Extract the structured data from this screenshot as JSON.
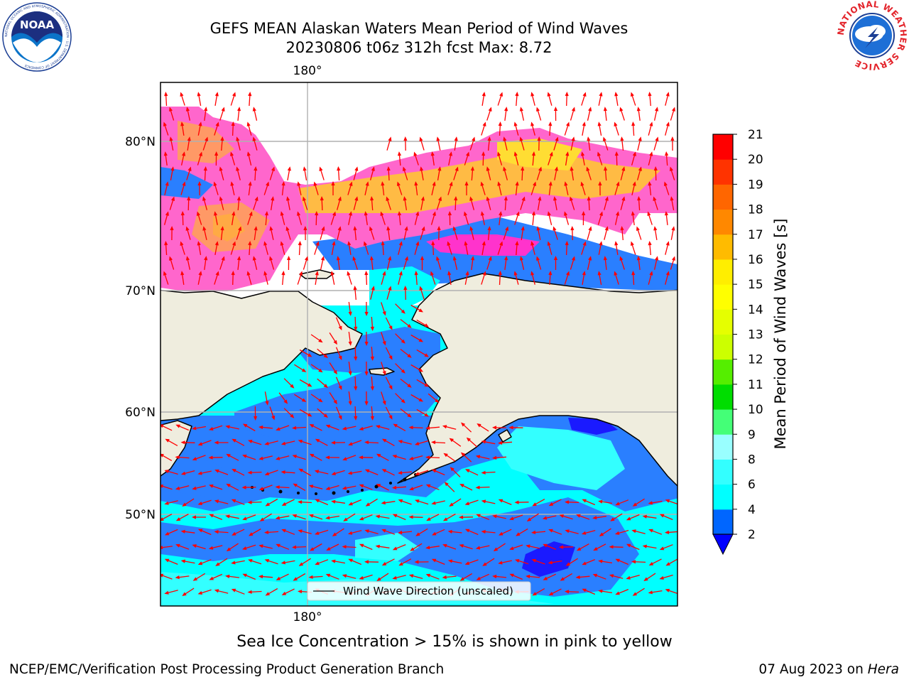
{
  "header": {
    "title_line1": "GEFS MEAN Alaskan Waters Mean Period of Wind Waves",
    "title_line2": "20230806 t06z 312h fcst   Max: 8.72"
  },
  "logos": {
    "noaa_text": "NOAA",
    "noaa_ring_text": "NATIONAL OCEANIC AND ATMOSPHERIC ADMINISTRATION · U.S. DEPARTMENT OF COMMERCE",
    "nws_ring_text": "NATIONAL WEATHER SERVICE"
  },
  "map": {
    "lon_label_top": "180°",
    "lon_label_bottom": "180°",
    "lat_labels": [
      "80°N",
      "70°N",
      "60°N",
      "50°N"
    ],
    "legend_label": "Wind Wave Direction (unscaled)",
    "colors": {
      "land": "#efedde",
      "arrow": "#ff0000",
      "grid": "#b0b0b0"
    }
  },
  "colorbar": {
    "label": "Mean Period of Wind Waves [s]",
    "ticks": [
      "2",
      "4",
      "6",
      "8",
      "9",
      "10",
      "11",
      "12",
      "13",
      "14",
      "15",
      "16",
      "17",
      "18",
      "19",
      "20",
      "21"
    ],
    "colors": [
      "#0066ff",
      "#00ffff",
      "#33ffff",
      "#99ffff",
      "#44ff77",
      "#00dd00",
      "#55ee00",
      "#ccff00",
      "#e5ff00",
      "#ffff00",
      "#ffee00",
      "#ffbb00",
      "#ff8800",
      "#ff6600",
      "#ff3300",
      "#ff0000"
    ],
    "extend_color": "#0000ff"
  },
  "caption": "Sea Ice Concentration > 15% is shown in pink to yellow",
  "footer": {
    "left": "NCEP/EMC/Verification Post Processing Product Generation Branch",
    "date": "07 Aug 2023 on",
    "machine": "Hera"
  }
}
